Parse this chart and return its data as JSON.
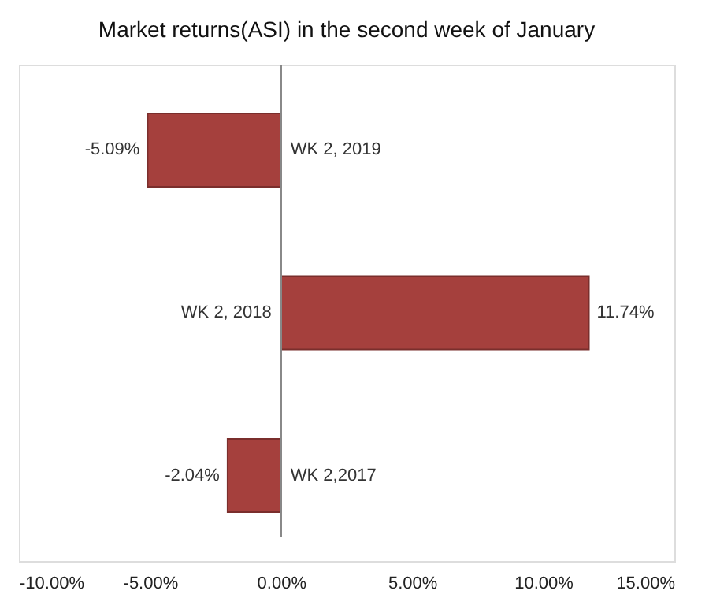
{
  "chart_data": {
    "type": "bar",
    "orientation": "horizontal",
    "title": "Market returns(ASI) in the second week of January",
    "categories": [
      "WK 2, 2019",
      "WK 2, 2018",
      "WK 2,2017"
    ],
    "values": [
      -5.09,
      11.74,
      -2.04
    ],
    "value_labels": [
      "-5.09%",
      "11.74%",
      "-2.04%"
    ],
    "color": "#a5403d",
    "xlim": [
      -10,
      15
    ],
    "xticks": [
      {
        "value": -10,
        "label": "-10.00%"
      },
      {
        "value": -5,
        "label": "-5.00%"
      },
      {
        "value": 0,
        "label": "0.00%"
      },
      {
        "value": 5,
        "label": "5.00%"
      },
      {
        "value": 10,
        "label": "10.00%"
      },
      {
        "value": 15,
        "label": "15.00%"
      }
    ],
    "grid": false
  }
}
